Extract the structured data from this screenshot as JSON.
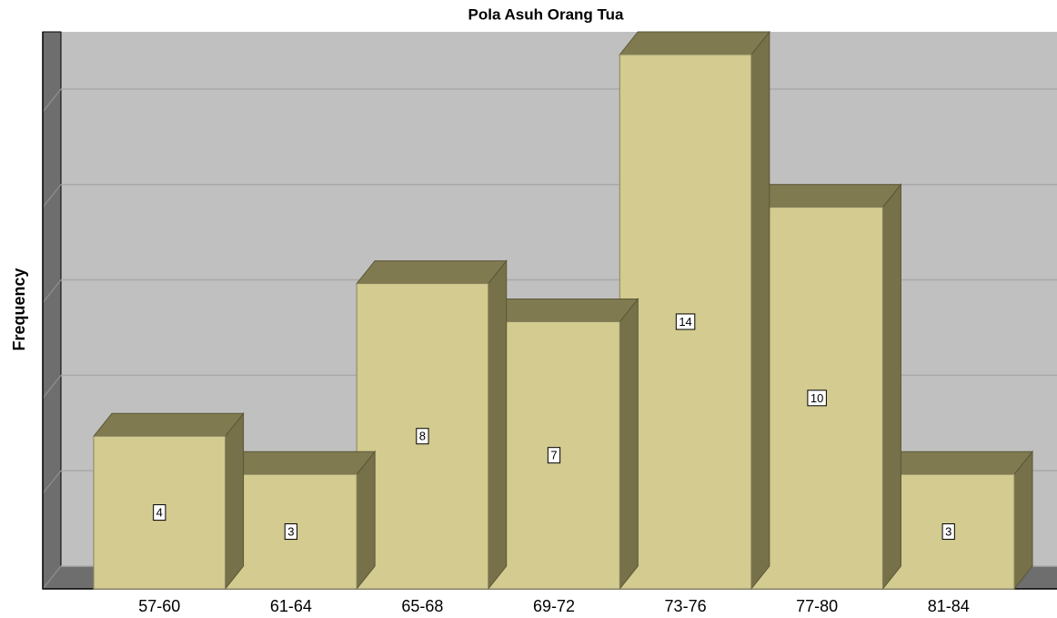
{
  "chart_data": {
    "type": "bar",
    "title": "Pola Asuh Orang Tua",
    "y_label": "Frequency",
    "categories": [
      "57-60",
      "61-64",
      "65-68",
      "69-72",
      "73-76",
      "77-80",
      "81-84"
    ],
    "values": [
      4,
      3,
      8,
      7,
      14,
      10,
      3
    ],
    "color": "#d3cb8f",
    "top_color": "#7f7a50",
    "side_color": "#767149",
    "ylim": [
      0,
      14
    ],
    "yticks": [
      0,
      2.5,
      5,
      7.5,
      10,
      12.5
    ],
    "grid": true
  }
}
